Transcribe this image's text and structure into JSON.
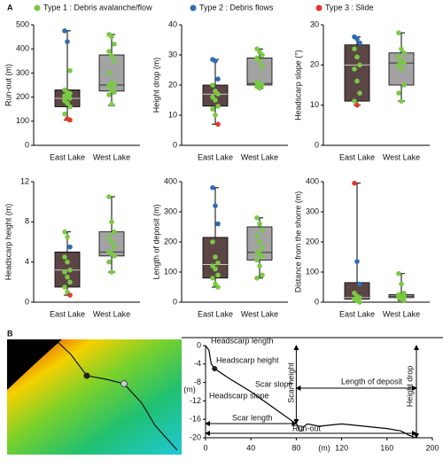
{
  "panel_labels": [
    "A",
    "B"
  ],
  "legend": [
    {
      "name": "Type 1 : Debris avalanche/flow",
      "color": "#7ac943"
    },
    {
      "name": "Type 2 : Debris flows",
      "color": "#2e6db4"
    },
    {
      "name": "Type 3 : Slide",
      "color": "#e03a2a"
    }
  ],
  "chart_data": [
    {
      "type": "box",
      "ylabel": "Run-out (m)",
      "ylim": [
        0,
        500
      ],
      "yticks": [
        0,
        100,
        200,
        300,
        400,
        500
      ],
      "categories": [
        "East Lake",
        "West Lake"
      ],
      "colors": [
        "#5b4545",
        "#a3a3a3"
      ],
      "boxes": [
        {
          "min": 105,
          "q1": 160,
          "median": 195,
          "q3": 230,
          "max": 475
        },
        {
          "min": 165,
          "q1": 225,
          "median": 250,
          "q3": 375,
          "max": 460
        }
      ],
      "points": [
        [
          475,
          430,
          310,
          230,
          220,
          215,
          205,
          200,
          195,
          185,
          175,
          160,
          130,
          110,
          105
        ],
        [
          460,
          450,
          420,
          390,
          370,
          350,
          300,
          260,
          250,
          245,
          230,
          220,
          210,
          170
        ]
      ],
      "point_types": [
        [
          1,
          1,
          0,
          0,
          0,
          0,
          0,
          0,
          0,
          0,
          0,
          0,
          0,
          2,
          2
        ],
        [
          0,
          0,
          0,
          0,
          0,
          0,
          0,
          0,
          0,
          0,
          0,
          0,
          0,
          0
        ]
      ]
    },
    {
      "type": "box",
      "ylabel": "Height drop (m)",
      "ylim": [
        0,
        40
      ],
      "yticks": [
        0,
        10,
        20,
        30,
        40
      ],
      "categories": [
        "East Lake",
        "West Lake"
      ],
      "colors": [
        "#5b4545",
        "#a3a3a3"
      ],
      "boxes": [
        {
          "min": 7,
          "q1": 13,
          "median": 17,
          "q3": 20,
          "max": 28.5
        },
        {
          "min": 19,
          "q1": 20,
          "median": 20.5,
          "q3": 29,
          "max": 32
        }
      ],
      "points": [
        [
          28.5,
          28,
          22,
          20,
          18,
          17,
          16,
          15,
          13,
          12,
          10,
          7
        ],
        [
          32,
          31,
          30,
          29,
          28,
          26,
          21,
          20.5,
          20,
          19.5,
          19
        ]
      ],
      "point_types": [
        [
          1,
          1,
          1,
          0,
          0,
          0,
          0,
          0,
          0,
          0,
          0,
          2
        ],
        [
          0,
          0,
          0,
          0,
          0,
          0,
          0,
          0,
          0,
          0,
          0
        ]
      ]
    },
    {
      "type": "box",
      "ylabel": "Headscarp slope (°)",
      "ylim": [
        0,
        30
      ],
      "yticks": [
        0,
        10,
        20,
        30
      ],
      "categories": [
        "East Lake",
        "West Lake"
      ],
      "colors": [
        "#5b4545",
        "#a3a3a3"
      ],
      "boxes": [
        {
          "min": 10,
          "q1": 11,
          "median": 20,
          "q3": 25,
          "max": 27
        },
        {
          "min": 11,
          "q1": 15,
          "median": 20.5,
          "q3": 23,
          "max": 28
        }
      ],
      "points": [
        [
          27,
          26.5,
          25.5,
          24,
          22,
          20,
          19,
          16,
          13,
          11,
          10
        ],
        [
          28,
          24,
          23,
          22,
          21,
          20.5,
          20,
          19,
          15,
          13,
          11
        ]
      ],
      "point_types": [
        [
          1,
          1,
          1,
          0,
          0,
          0,
          0,
          0,
          0,
          0,
          2
        ],
        [
          0,
          0,
          0,
          0,
          0,
          0,
          0,
          0,
          0,
          0,
          0
        ]
      ]
    },
    {
      "type": "box",
      "ylabel": "Headscarp height (m)",
      "ylim": [
        0,
        12
      ],
      "yticks": [
        0,
        4,
        8,
        12
      ],
      "categories": [
        "East Lake",
        "West Lake"
      ],
      "colors": [
        "#5b4545",
        "#a3a3a3"
      ],
      "boxes": [
        {
          "min": 0.7,
          "q1": 1.5,
          "median": 3.2,
          "q3": 5,
          "max": 7
        },
        {
          "min": 3,
          "q1": 4.6,
          "median": 5,
          "q3": 7,
          "max": 10.5
        }
      ],
      "points": [
        [
          7,
          6.5,
          5.5,
          4.5,
          4,
          3.2,
          3,
          2.5,
          2,
          1.5,
          1,
          0.7
        ],
        [
          10.5,
          8,
          7,
          6.5,
          6,
          5.5,
          5,
          4.8,
          4.6,
          4,
          3
        ]
      ],
      "point_types": [
        [
          0,
          0,
          1,
          0,
          0,
          0,
          0,
          0,
          0,
          0,
          0,
          2
        ],
        [
          0,
          0,
          0,
          0,
          0,
          0,
          0,
          0,
          0,
          0,
          0
        ]
      ]
    },
    {
      "type": "box",
      "ylabel": "Length of deposit (m)",
      "ylim": [
        0,
        400
      ],
      "yticks": [
        0,
        100,
        200,
        300,
        400
      ],
      "categories": [
        "East Lake",
        "West Lake"
      ],
      "colors": [
        "#5b4545",
        "#a3a3a3"
      ],
      "boxes": [
        {
          "min": 50,
          "q1": 80,
          "median": 125,
          "q3": 215,
          "max": 380
        },
        {
          "min": 80,
          "q1": 140,
          "median": 165,
          "q3": 250,
          "max": 280
        }
      ],
      "points": [
        [
          380,
          320,
          260,
          200,
          150,
          130,
          120,
          110,
          90,
          80,
          60,
          50
        ],
        [
          280,
          260,
          240,
          220,
          200,
          180,
          165,
          160,
          150,
          140,
          120,
          90,
          80
        ]
      ],
      "point_types": [
        [
          1,
          1,
          1,
          0,
          0,
          0,
          0,
          0,
          0,
          0,
          0,
          0
        ],
        [
          0,
          0,
          0,
          0,
          0,
          0,
          0,
          0,
          0,
          0,
          0,
          0,
          0
        ]
      ]
    },
    {
      "type": "box",
      "ylabel": "Distance from the shorre (m)",
      "ylim": [
        0,
        400
      ],
      "yticks": [
        0,
        100,
        200,
        300,
        400
      ],
      "categories": [
        "East Lake",
        "West Lake"
      ],
      "colors": [
        "#5b4545",
        "#a3a3a3"
      ],
      "boxes": [
        {
          "min": 0,
          "q1": 10,
          "median": 15,
          "q3": 65,
          "max": 395
        },
        {
          "min": 5,
          "q1": 15,
          "median": 20,
          "q3": 25,
          "max": 95
        }
      ],
      "points": [
        [
          395,
          135,
          60,
          30,
          20,
          15,
          10,
          5,
          0
        ],
        [
          95,
          60,
          30,
          25,
          20,
          18,
          15,
          10,
          5
        ]
      ],
      "point_types": [
        [
          2,
          1,
          1,
          0,
          0,
          0,
          0,
          0,
          0
        ],
        [
          0,
          0,
          0,
          0,
          0,
          0,
          0,
          0,
          0
        ]
      ]
    },
    {
      "type": "line",
      "xlabel": "(m)",
      "ylabel": "(m)",
      "xlim": [
        0,
        200
      ],
      "xticks": [
        0,
        40,
        80,
        120,
        160,
        200
      ],
      "ylim": [
        -20,
        0
      ],
      "yticks": [
        0,
        -4,
        -8,
        -12,
        -16,
        -20
      ],
      "x": [
        0,
        3,
        5,
        8,
        20,
        40,
        60,
        80,
        84,
        90,
        100,
        120,
        140,
        160,
        172,
        180,
        185
      ],
      "y": [
        0,
        -1,
        -4,
        -5,
        -7,
        -10,
        -13.5,
        -17,
        -18,
        -17,
        -17.5,
        -17,
        -17.5,
        -18,
        -18.5,
        -19.5,
        -20
      ],
      "annotations": [
        "Headscarp length",
        "Headscarp height",
        "Headscarp slope",
        "Scar slope",
        "Scar height",
        "Length of deposit",
        "Height drop",
        "Scar length",
        "Run-out"
      ]
    }
  ]
}
